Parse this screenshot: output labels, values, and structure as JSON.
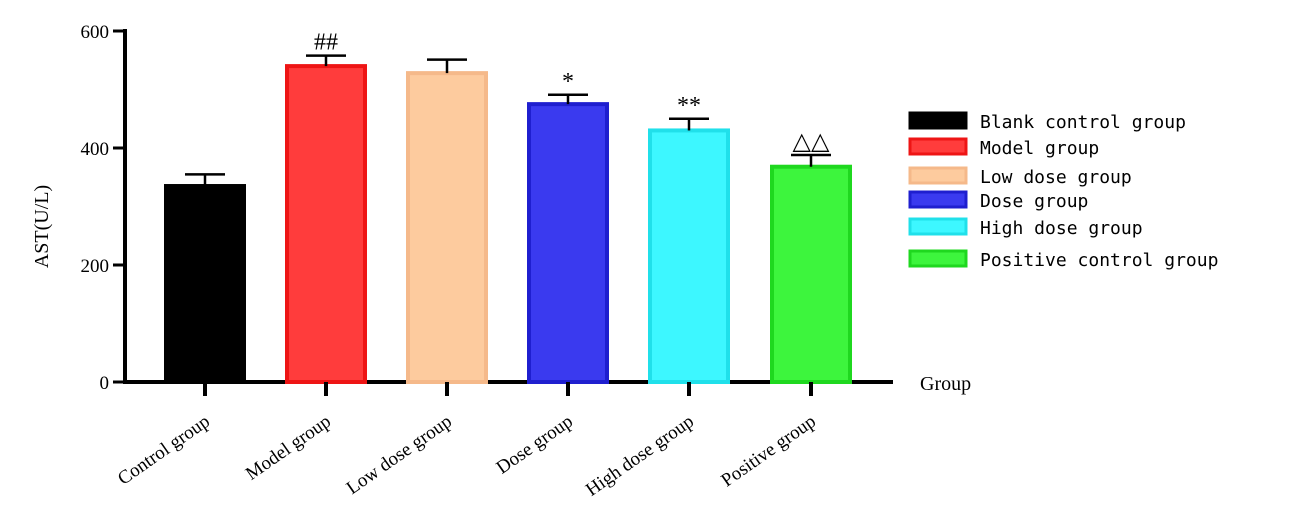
{
  "chart_data": {
    "type": "bar",
    "ylabel": "AST(U/L)",
    "xlabel": "Group",
    "ylim": [
      0,
      600
    ],
    "yticks": [
      0,
      200,
      400,
      600
    ],
    "categories": [
      "Control group",
      "Model group",
      "Low dose group",
      "Dose group",
      "High dose group",
      "Positive group"
    ],
    "values": [
      335,
      540,
      528,
      475,
      430,
      368
    ],
    "errors": [
      20,
      18,
      23,
      16,
      20,
      20
    ],
    "colors": [
      "#000000",
      "#ff3c3c",
      "#fdcb9e",
      "#3a3aef",
      "#3df7ff",
      "#3df53d"
    ],
    "edge_colors": [
      "#000000",
      "#ee1515",
      "#f5b98a",
      "#1f1fcf",
      "#20e0ea",
      "#1fd81f"
    ],
    "annotations": [
      "",
      "##",
      "",
      "*",
      "**",
      "△△"
    ],
    "legend": {
      "position": "right",
      "entries": [
        "Blank control  group",
        "Model group",
        "Low dose group",
        "Dose group",
        "High dose group",
        "Positive control group"
      ]
    },
    "grid": false
  }
}
